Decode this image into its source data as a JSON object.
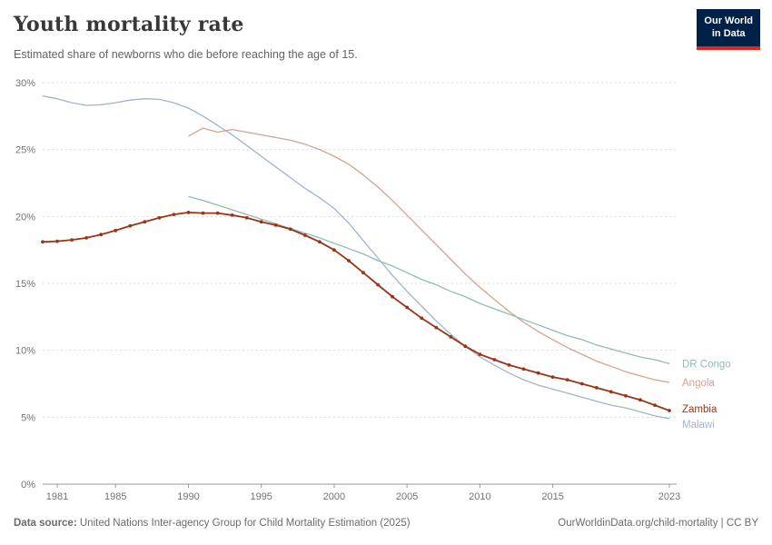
{
  "header": {
    "title": "Youth mortality rate",
    "subtitle": "Estimated share of newborns who die before reaching the age of 15."
  },
  "logo": {
    "line1": "Our World",
    "line2": "in Data",
    "bg_color": "#002147",
    "accent_color": "#e0261c"
  },
  "chart_data": {
    "type": "line",
    "title": "Youth mortality rate",
    "ylim": [
      0,
      30
    ],
    "y_ticks": [
      0,
      5,
      10,
      15,
      20,
      25,
      30
    ],
    "y_tick_suffix": "%",
    "x_ticks": [
      1981,
      1985,
      1990,
      1995,
      2000,
      2005,
      2010,
      2015,
      2023
    ],
    "grid": "dashed-horizontal",
    "legend_position": "right-end-labels",
    "x": [
      1980,
      1981,
      1982,
      1983,
      1984,
      1985,
      1986,
      1987,
      1988,
      1989,
      1990,
      1991,
      1992,
      1993,
      1994,
      1995,
      1996,
      1997,
      1998,
      1999,
      2000,
      2001,
      2002,
      2003,
      2004,
      2005,
      2006,
      2007,
      2008,
      2009,
      2010,
      2011,
      2012,
      2013,
      2014,
      2015,
      2016,
      2017,
      2018,
      2019,
      2020,
      2021,
      2022,
      2023
    ],
    "series": [
      {
        "name": "Malawi",
        "color": "#a3b4c9",
        "width": 1.3,
        "markers": false,
        "label_dy": 6,
        "values": [
          29.0,
          28.8,
          28.5,
          28.3,
          28.35,
          28.5,
          28.7,
          28.8,
          28.75,
          28.5,
          28.1,
          27.5,
          26.8,
          26.1,
          25.3,
          24.5,
          23.7,
          22.9,
          22.1,
          21.4,
          20.6,
          19.5,
          18.2,
          16.9,
          15.6,
          14.4,
          13.3,
          12.2,
          11.2,
          10.3,
          9.5,
          8.9,
          8.3,
          7.8,
          7.4,
          7.1,
          6.8,
          6.5,
          6.2,
          5.9,
          5.7,
          5.4,
          5.1,
          4.9
        ]
      },
      {
        "name": "Angola",
        "color": "#d3a28f",
        "width": 1.3,
        "markers": false,
        "label_dy": 0,
        "values": [
          null,
          null,
          null,
          null,
          null,
          null,
          null,
          null,
          null,
          null,
          26.0,
          26.6,
          26.3,
          26.5,
          26.3,
          26.1,
          25.9,
          25.7,
          25.4,
          25.0,
          24.5,
          23.9,
          23.1,
          22.2,
          21.2,
          20.1,
          19.0,
          17.9,
          16.8,
          15.7,
          14.7,
          13.8,
          12.9,
          12.1,
          11.4,
          10.8,
          10.2,
          9.7,
          9.2,
          8.8,
          8.4,
          8.1,
          7.8,
          7.6
        ]
      },
      {
        "name": "DR Congo",
        "color": "#8fbcb4",
        "width": 1.3,
        "markers": false,
        "label_dy": 0,
        "values": [
          null,
          null,
          null,
          null,
          null,
          null,
          null,
          null,
          null,
          null,
          21.5,
          21.2,
          20.85,
          20.5,
          20.15,
          19.8,
          19.45,
          19.1,
          18.75,
          18.4,
          18.0,
          17.6,
          17.2,
          16.7,
          16.3,
          15.8,
          15.3,
          14.9,
          14.4,
          14.0,
          13.5,
          13.1,
          12.7,
          12.3,
          11.9,
          11.5,
          11.1,
          10.8,
          10.4,
          10.1,
          9.8,
          9.5,
          9.3,
          9.0
        ]
      },
      {
        "name": "Zambia",
        "color": "#9a3416",
        "width": 1.8,
        "markers": true,
        "label_dy": -2,
        "values": [
          18.1,
          18.15,
          18.25,
          18.4,
          18.65,
          18.95,
          19.3,
          19.6,
          19.9,
          20.15,
          20.3,
          20.25,
          20.25,
          20.1,
          19.9,
          19.6,
          19.35,
          19.05,
          18.6,
          18.1,
          17.5,
          16.7,
          15.8,
          14.9,
          14.0,
          13.2,
          12.4,
          11.7,
          11.0,
          10.3,
          9.7,
          9.3,
          8.9,
          8.6,
          8.3,
          8.0,
          7.8,
          7.5,
          7.2,
          6.9,
          6.6,
          6.3,
          5.9,
          5.5
        ]
      }
    ]
  },
  "footer": {
    "source_label": "Data source:",
    "source_text": "United Nations Inter-agency Group for Child Mortality Estimation (2025)",
    "credit": "OurWorldinData.org/child-mortality | CC BY"
  }
}
